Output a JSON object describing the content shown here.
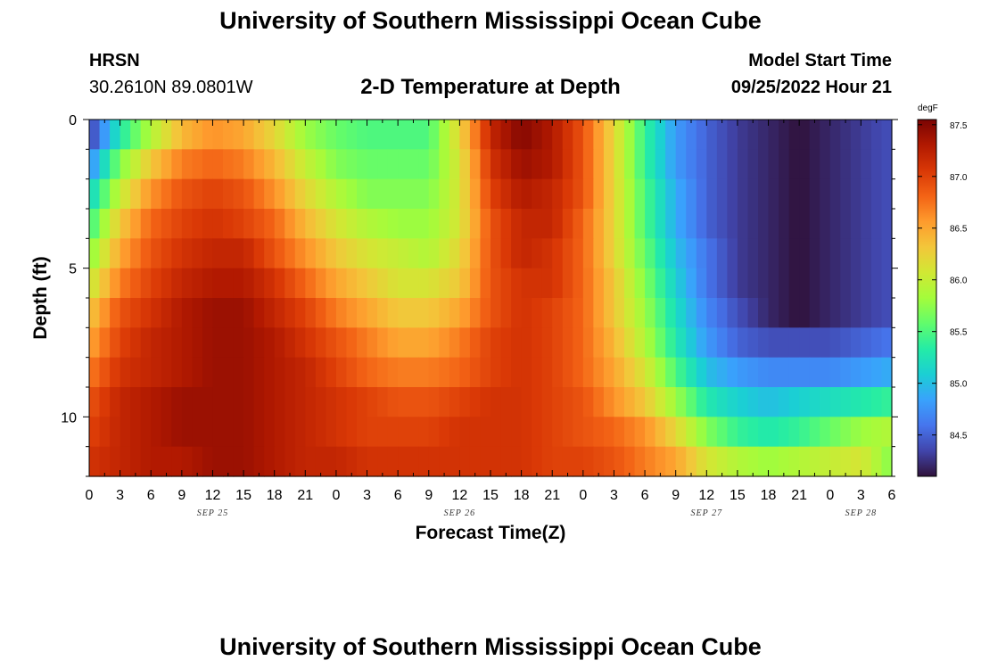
{
  "header": {
    "title": "University of Southern Mississippi Ocean Cube",
    "station": "HRSN",
    "coords": "30.2610N  89.0801W",
    "subtitle": "2-D Temperature at Depth",
    "model_label": "Model Start Time",
    "model_time": "09/25/2022 Hour 21"
  },
  "footer": {
    "title": "University of Southern Mississippi Ocean Cube"
  },
  "chart_data": {
    "type": "heatmap",
    "title": "2-D Temperature at Depth",
    "xlabel": "Forecast Time(Z)",
    "ylabel": "Depth (ft)",
    "x_hours_range": [
      0,
      78
    ],
    "y_range": [
      0,
      12
    ],
    "x_tick_labels": [
      "0",
      "3",
      "6",
      "9",
      "12",
      "15",
      "18",
      "21",
      "0",
      "3",
      "6",
      "9",
      "12",
      "15",
      "18",
      "21",
      "0",
      "3",
      "6",
      "9",
      "12",
      "15",
      "18",
      "21",
      "0",
      "3",
      "6"
    ],
    "y_tick_labels": [
      "0",
      "5",
      "10"
    ],
    "y_tick_values": [
      0,
      5,
      10
    ],
    "date_labels": [
      {
        "label": "SEP 25",
        "hour": 12
      },
      {
        "label": "SEP 26",
        "hour": 36
      },
      {
        "label": "SEP 27",
        "hour": 60
      },
      {
        "label": "SEP 28",
        "hour": 75
      }
    ],
    "colorbar": {
      "unit": "degF",
      "min": 84.1,
      "max": 87.55,
      "ticks": [
        "87.5",
        "87.0",
        "86.5",
        "86.0",
        "85.5",
        "85.0",
        "84.5"
      ],
      "tick_values": [
        87.5,
        87.0,
        86.5,
        86.0,
        85.5,
        85.0,
        84.5
      ],
      "colors": [
        "#30123b",
        "#4145ab",
        "#4675ed",
        "#39a2fc",
        "#1bcfd4",
        "#24eca6",
        "#61fc6c",
        "#a4fc3b",
        "#d1e834",
        "#f3c63a",
        "#fe9b2d",
        "#f36315",
        "#d93806",
        "#b11901",
        "#7a0403"
      ]
    },
    "depths_ft": [
      0.5,
      1.5,
      2.5,
      3.5,
      4.5,
      5.5,
      6.5,
      7.5,
      8.5,
      9.5,
      10.5,
      11.5
    ],
    "hours": [
      0,
      3,
      6,
      9,
      12,
      15,
      18,
      21,
      24,
      27,
      30,
      33,
      36,
      39,
      42,
      45,
      48,
      51,
      54,
      57,
      60,
      63,
      66,
      69,
      72,
      75,
      78
    ],
    "values": [
      [
        84.3,
        85.3,
        85.9,
        86.4,
        86.6,
        86.5,
        86.2,
        85.8,
        85.6,
        85.5,
        85.5,
        85.5,
        86.2,
        87.2,
        87.5,
        87.3,
        86.9,
        86.2,
        85.4,
        84.8,
        84.5,
        84.3,
        84.2,
        84.1,
        84.2,
        84.3,
        84.4
      ],
      [
        84.7,
        85.7,
        86.3,
        86.7,
        86.8,
        86.7,
        86.4,
        86.0,
        85.7,
        85.6,
        85.6,
        85.6,
        86.1,
        87.1,
        87.4,
        87.3,
        86.9,
        86.2,
        85.4,
        84.8,
        84.5,
        84.3,
        84.2,
        84.1,
        84.2,
        84.3,
        84.4
      ],
      [
        85.1,
        86.0,
        86.6,
        86.9,
        87.0,
        86.9,
        86.6,
        86.2,
        85.9,
        85.7,
        85.7,
        85.7,
        86.1,
        87.0,
        87.3,
        87.2,
        86.9,
        86.2,
        85.5,
        84.9,
        84.5,
        84.3,
        84.2,
        84.1,
        84.2,
        84.3,
        84.4
      ],
      [
        85.4,
        86.3,
        86.8,
        87.0,
        87.1,
        87.0,
        86.8,
        86.4,
        86.1,
        85.9,
        85.8,
        85.8,
        86.1,
        86.9,
        87.2,
        87.2,
        86.8,
        86.2,
        85.5,
        84.9,
        84.5,
        84.3,
        84.2,
        84.1,
        84.2,
        84.3,
        84.4
      ],
      [
        85.7,
        86.5,
        86.9,
        87.1,
        87.2,
        87.2,
        86.9,
        86.6,
        86.3,
        86.1,
        86.0,
        85.9,
        86.2,
        86.9,
        87.2,
        87.1,
        86.8,
        86.2,
        85.6,
        85.0,
        84.6,
        84.3,
        84.2,
        84.1,
        84.2,
        84.3,
        84.4
      ],
      [
        86.0,
        86.7,
        87.0,
        87.2,
        87.3,
        87.3,
        87.1,
        86.8,
        86.5,
        86.3,
        86.1,
        86.1,
        86.3,
        86.9,
        87.1,
        87.1,
        86.8,
        86.3,
        85.7,
        85.1,
        84.6,
        84.3,
        84.2,
        84.1,
        84.2,
        84.3,
        84.4
      ],
      [
        86.3,
        86.9,
        87.1,
        87.3,
        87.4,
        87.4,
        87.2,
        87.0,
        86.7,
        86.5,
        86.3,
        86.3,
        86.5,
        86.9,
        87.1,
        87.0,
        86.8,
        86.3,
        85.8,
        85.2,
        84.7,
        84.4,
        84.2,
        84.1,
        84.2,
        84.3,
        84.4
      ],
      [
        86.5,
        87.0,
        87.2,
        87.3,
        87.4,
        87.4,
        87.3,
        87.1,
        86.9,
        86.7,
        86.5,
        86.5,
        86.7,
        87.0,
        87.1,
        87.0,
        86.8,
        86.4,
        85.9,
        85.3,
        84.8,
        84.5,
        84.4,
        84.4,
        84.4,
        84.5,
        84.6
      ],
      [
        86.7,
        87.1,
        87.2,
        87.3,
        87.4,
        87.4,
        87.3,
        87.2,
        87.0,
        86.8,
        86.7,
        86.7,
        86.8,
        87.0,
        87.1,
        87.0,
        86.8,
        86.5,
        86.1,
        85.5,
        85.0,
        84.8,
        84.7,
        84.7,
        84.7,
        84.8,
        84.9
      ],
      [
        86.9,
        87.2,
        87.3,
        87.4,
        87.4,
        87.4,
        87.3,
        87.2,
        87.1,
        87.0,
        86.9,
        86.9,
        87.0,
        87.1,
        87.1,
        87.0,
        86.9,
        86.6,
        86.3,
        85.8,
        85.3,
        85.1,
        85.0,
        85.1,
        85.2,
        85.3,
        85.4
      ],
      [
        87.0,
        87.2,
        87.3,
        87.4,
        87.4,
        87.4,
        87.3,
        87.2,
        87.1,
        87.0,
        87.0,
        87.0,
        87.1,
        87.1,
        87.1,
        87.0,
        86.9,
        86.8,
        86.6,
        86.2,
        85.7,
        85.4,
        85.3,
        85.4,
        85.6,
        85.8,
        85.9
      ],
      [
        87.1,
        87.2,
        87.3,
        87.3,
        87.4,
        87.4,
        87.3,
        87.2,
        87.2,
        87.1,
        87.1,
        87.1,
        87.1,
        87.1,
        87.1,
        87.0,
        87.0,
        86.9,
        86.7,
        86.5,
        86.1,
        85.9,
        85.8,
        85.9,
        86.0,
        86.1,
        85.7
      ]
    ]
  }
}
